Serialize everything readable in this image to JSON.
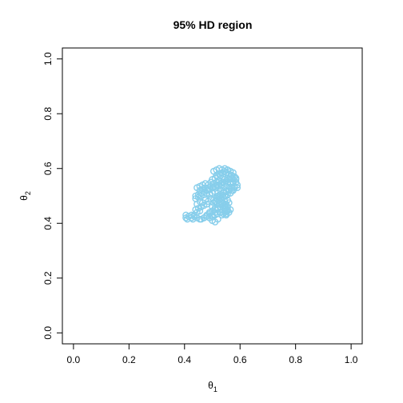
{
  "chart_data": {
    "type": "scatter",
    "title": "95% HD region",
    "xlabel": {
      "base": "θ",
      "sub": "1"
    },
    "ylabel": {
      "base": "θ",
      "sub": "2"
    },
    "xlim": [
      -0.04,
      1.04
    ],
    "ylim": [
      -0.04,
      1.04
    ],
    "xticks": [
      "0.0",
      "0.2",
      "0.4",
      "0.6",
      "0.8",
      "1.0"
    ],
    "yticks": [
      "0.0",
      "0.2",
      "0.4",
      "0.6",
      "0.8",
      "1.0"
    ],
    "tick_values": [
      0.0,
      0.2,
      0.4,
      0.6,
      0.8,
      1.0
    ],
    "grid": false,
    "marker": "open-circle",
    "color": "#87CEEB",
    "series": [
      {
        "x": [
          0.405,
          0.415,
          0.425,
          0.435,
          0.445,
          0.455,
          0.41,
          0.43,
          0.44,
          0.45,
          0.46,
          0.47,
          0.48,
          0.445,
          0.455,
          0.465,
          0.475,
          0.485,
          0.495,
          0.505,
          0.515,
          0.525,
          0.535,
          0.545,
          0.555,
          0.565,
          0.575,
          0.44,
          0.45,
          0.46,
          0.47,
          0.48,
          0.49,
          0.5,
          0.51,
          0.52,
          0.53,
          0.54,
          0.55,
          0.56,
          0.57,
          0.58,
          0.59,
          0.455,
          0.465,
          0.475,
          0.485,
          0.495,
          0.505,
          0.515,
          0.525,
          0.535,
          0.545,
          0.555,
          0.565,
          0.575,
          0.585,
          0.445,
          0.455,
          0.465,
          0.475,
          0.485,
          0.495,
          0.505,
          0.515,
          0.525,
          0.535,
          0.545,
          0.555,
          0.565,
          0.575,
          0.585,
          0.44,
          0.45,
          0.46,
          0.47,
          0.48,
          0.49,
          0.5,
          0.51,
          0.52,
          0.53,
          0.54,
          0.55,
          0.56,
          0.57,
          0.58,
          0.5,
          0.51,
          0.52,
          0.53,
          0.54,
          0.55,
          0.56,
          0.57,
          0.58,
          0.515,
          0.525,
          0.535,
          0.545,
          0.555,
          0.565,
          0.575,
          0.505,
          0.515,
          0.525,
          0.535,
          0.545,
          0.555,
          0.565,
          0.52,
          0.53,
          0.54,
          0.55,
          0.56,
          0.51,
          0.52,
          0.53,
          0.54,
          0.55,
          0.525,
          0.535,
          0.545,
          0.555,
          0.52,
          0.53,
          0.54,
          0.55,
          0.56,
          0.53,
          0.545,
          0.535,
          0.55,
          0.565,
          0.575,
          0.585,
          0.57,
          0.58,
          0.59,
          0.5,
          0.51,
          0.52,
          0.49,
          0.5,
          0.51,
          0.48,
          0.49,
          0.5,
          0.47,
          0.48,
          0.46,
          0.47,
          0.445,
          0.455,
          0.435,
          0.425,
          0.415,
          0.405,
          0.5,
          0.51,
          0.52,
          0.49,
          0.5,
          0.51,
          0.52,
          0.53,
          0.51,
          0.52,
          0.53,
          0.505,
          0.515,
          0.525,
          0.535,
          0.545,
          0.555,
          0.545,
          0.555,
          0.55,
          0.56,
          0.54,
          0.55,
          0.545,
          0.555,
          0.565
        ],
        "y": [
          0.43,
          0.425,
          0.42,
          0.43,
          0.44,
          0.445,
          0.415,
          0.415,
          0.45,
          0.455,
          0.46,
          0.465,
          0.47,
          0.47,
          0.48,
          0.475,
          0.485,
          0.48,
          0.49,
          0.485,
          0.49,
          0.495,
          0.49,
          0.5,
          0.505,
          0.51,
          0.52,
          0.49,
          0.495,
          0.5,
          0.505,
          0.51,
          0.505,
          0.51,
          0.515,
          0.51,
          0.52,
          0.515,
          0.52,
          0.525,
          0.52,
          0.53,
          0.53,
          0.52,
          0.525,
          0.53,
          0.52,
          0.535,
          0.53,
          0.54,
          0.535,
          0.54,
          0.545,
          0.55,
          0.545,
          0.55,
          0.56,
          0.53,
          0.535,
          0.54,
          0.545,
          0.54,
          0.55,
          0.545,
          0.55,
          0.555,
          0.55,
          0.56,
          0.565,
          0.57,
          0.56,
          0.565,
          0.5,
          0.505,
          0.51,
          0.515,
          0.52,
          0.525,
          0.53,
          0.535,
          0.54,
          0.545,
          0.55,
          0.555,
          0.56,
          0.565,
          0.57,
          0.56,
          0.565,
          0.57,
          0.575,
          0.58,
          0.585,
          0.58,
          0.575,
          0.57,
          0.575,
          0.58,
          0.585,
          0.59,
          0.595,
          0.59,
          0.585,
          0.59,
          0.595,
          0.6,
          0.595,
          0.6,
          0.595,
          0.59,
          0.5,
          0.505,
          0.51,
          0.515,
          0.52,
          0.48,
          0.485,
          0.49,
          0.495,
          0.5,
          0.47,
          0.475,
          0.48,
          0.485,
          0.455,
          0.46,
          0.465,
          0.47,
          0.475,
          0.44,
          0.445,
          0.43,
          0.435,
          0.55,
          0.545,
          0.55,
          0.53,
          0.535,
          0.54,
          0.46,
          0.455,
          0.45,
          0.44,
          0.445,
          0.44,
          0.43,
          0.435,
          0.43,
          0.42,
          0.425,
          0.415,
          0.42,
          0.42,
          0.415,
          0.425,
          0.43,
          0.425,
          0.42,
          0.41,
          0.405,
          0.415,
          0.42,
          0.425,
          0.43,
          0.435,
          0.44,
          0.45,
          0.455,
          0.46,
          0.475,
          0.48,
          0.485,
          0.47,
          0.465,
          0.46,
          0.455,
          0.45,
          0.445,
          0.44,
          0.435,
          0.43,
          0.44,
          0.445,
          0.45
        ]
      }
    ]
  }
}
